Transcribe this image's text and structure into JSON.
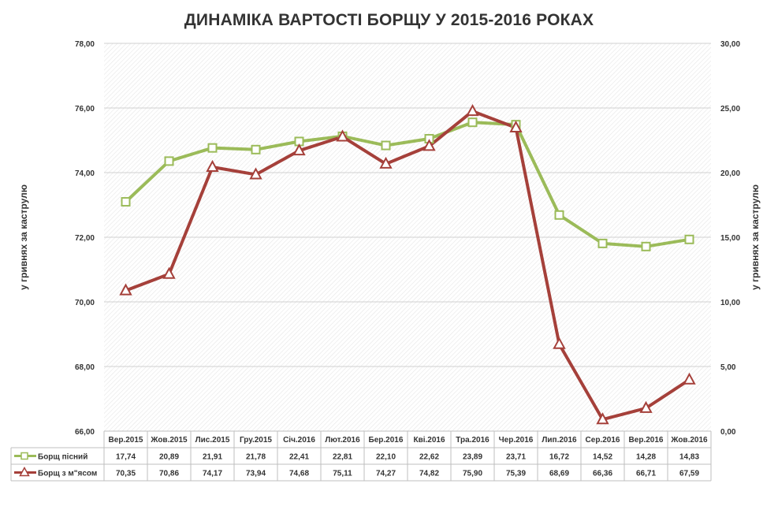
{
  "chart_data": {
    "type": "line",
    "title": "ДИНАМІКА ВАРТОСТІ БОРЩУ У 2015-2016 РОКАХ",
    "categories": [
      "Вер.2015",
      "Жов.2015",
      "Лис.2015",
      "Гру.2015",
      "Січ.2016",
      "Лют.2016",
      "Бер.2016",
      "Кві.2016",
      "Тра.2016",
      "Чер.2016",
      "Лип.2016",
      "Сер.2016",
      "Вер.2016",
      "Жов.2016"
    ],
    "series": [
      {
        "name": "Борщ пісний",
        "axis": "right",
        "values": [
          17.74,
          20.89,
          21.91,
          21.78,
          22.41,
          22.81,
          22.1,
          22.62,
          23.89,
          23.71,
          16.72,
          14.52,
          14.28,
          14.83
        ],
        "labels": [
          "17,74",
          "20,89",
          "21,91",
          "21,78",
          "22,41",
          "22,81",
          "22,10",
          "22,62",
          "23,89",
          "23,71",
          "16,72",
          "14,52",
          "14,28",
          "14,83"
        ],
        "color": "#9bbb59",
        "marker": "square"
      },
      {
        "name": "Борщ з м\"ясом",
        "axis": "left",
        "values": [
          70.35,
          70.86,
          74.17,
          73.94,
          74.68,
          75.11,
          74.27,
          74.82,
          75.9,
          75.39,
          68.69,
          66.36,
          66.71,
          67.59
        ],
        "labels": [
          "70,35",
          "70,86",
          "74,17",
          "73,94",
          "74,68",
          "75,11",
          "74,27",
          "74,82",
          "75,90",
          "75,39",
          "68,69",
          "66,36",
          "66,71",
          "67,59"
        ],
        "color": "#a5403a",
        "marker": "triangle"
      }
    ],
    "left_axis": {
      "title": "у гривнях за каструлю",
      "ylim": [
        66,
        78
      ],
      "ticks": [
        66,
        68,
        70,
        72,
        74,
        76,
        78
      ],
      "tick_labels": [
        "66,00",
        "68,00",
        "70,00",
        "72,00",
        "74,00",
        "76,00",
        "78,00"
      ]
    },
    "right_axis": {
      "title": "у гривнях за каструлю",
      "ylim": [
        0,
        30
      ],
      "ticks": [
        0,
        5,
        10,
        15,
        20,
        25,
        30
      ],
      "tick_labels": [
        "0,00",
        "5,00",
        "10,00",
        "15,00",
        "20,00",
        "25,00",
        "30,00"
      ]
    },
    "grid": true,
    "legend": "data-table-bottom"
  }
}
